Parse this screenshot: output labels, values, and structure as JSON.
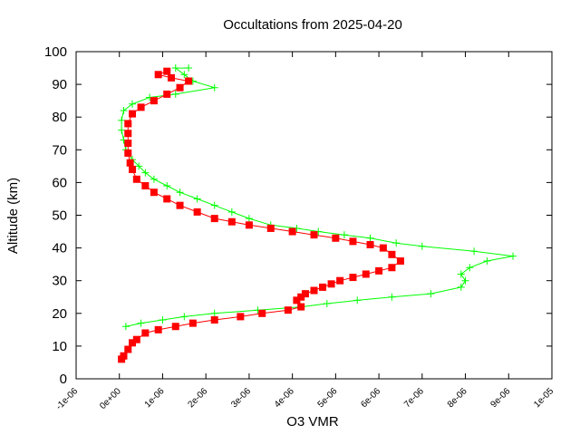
{
  "chart_data": {
    "type": "scatter",
    "title": "Occultations from 2025-04-20",
    "xlabel": "O3 VMR",
    "ylabel": "Altitude (km)",
    "xlim": [
      -1e-06,
      1e-05
    ],
    "ylim": [
      0,
      100
    ],
    "x_tick_labels": [
      "-1e-06",
      "0e+00",
      "1e-06",
      "2e-06",
      "3e-06",
      "4e-06",
      "5e-06",
      "6e-06",
      "7e-06",
      "8e-06",
      "9e-06",
      "1e-05"
    ],
    "x_tick_values": [
      -1e-06,
      0,
      1e-06,
      2e-06,
      3e-06,
      4e-06,
      5e-06,
      6e-06,
      7e-06,
      8e-06,
      9e-06,
      1e-05
    ],
    "y_tick_labels": [
      "0",
      "10",
      "20",
      "30",
      "40",
      "50",
      "60",
      "70",
      "80",
      "90",
      "100"
    ],
    "y_tick_values": [
      0,
      10,
      20,
      30,
      40,
      50,
      60,
      70,
      80,
      90,
      100
    ],
    "grid": false,
    "series": [
      {
        "marker": "plus",
        "color": "#00ff00",
        "points": [
          [
            1.5e-07,
            16
          ],
          [
            5e-07,
            17
          ],
          [
            1e-06,
            18
          ],
          [
            1.5e-06,
            19
          ],
          [
            2.2e-06,
            20
          ],
          [
            3.2e-06,
            21
          ],
          [
            4.2e-06,
            22
          ],
          [
            4.8e-06,
            23
          ],
          [
            5.5e-06,
            24
          ],
          [
            6.3e-06,
            25
          ],
          [
            7.2e-06,
            26
          ],
          [
            7.9e-06,
            28
          ],
          [
            8e-06,
            30
          ],
          [
            7.9e-06,
            32
          ],
          [
            8.1e-06,
            34
          ],
          [
            8.5e-06,
            36
          ],
          [
            9.1e-06,
            37.5
          ],
          [
            8.2e-06,
            39
          ],
          [
            7e-06,
            40.5
          ],
          [
            6.4e-06,
            41.5
          ],
          [
            5.8e-06,
            43
          ],
          [
            5.2e-06,
            44
          ],
          [
            4.6e-06,
            45
          ],
          [
            4.1e-06,
            46
          ],
          [
            3.5e-06,
            47
          ],
          [
            3e-06,
            49
          ],
          [
            2.6e-06,
            51
          ],
          [
            2.2e-06,
            53
          ],
          [
            1.8e-06,
            55
          ],
          [
            1.4e-06,
            57
          ],
          [
            1.1e-06,
            59
          ],
          [
            8e-07,
            61
          ],
          [
            6e-07,
            63
          ],
          [
            4.5e-07,
            65
          ],
          [
            3e-07,
            67
          ],
          [
            1.5e-07,
            70
          ],
          [
            1e-07,
            73
          ],
          [
            5e-08,
            76
          ],
          [
            5e-08,
            79
          ],
          [
            1e-07,
            82
          ],
          [
            3e-07,
            84
          ],
          [
            7e-07,
            86
          ],
          [
            1.3e-06,
            87
          ],
          [
            2.2e-06,
            89
          ],
          [
            1.7e-06,
            91
          ],
          [
            1.5e-06,
            93
          ],
          [
            1.3e-06,
            95
          ],
          [
            1.6e-06,
            95
          ]
        ]
      },
      {
        "marker": "square",
        "color": "#ff0000",
        "points": [
          [
            5e-08,
            6
          ],
          [
            1e-07,
            7
          ],
          [
            2e-07,
            9
          ],
          [
            3e-07,
            11
          ],
          [
            4e-07,
            12
          ],
          [
            6e-07,
            14
          ],
          [
            9e-07,
            15
          ],
          [
            1.3e-06,
            16
          ],
          [
            1.7e-06,
            17
          ],
          [
            2.2e-06,
            18
          ],
          [
            2.8e-06,
            19
          ],
          [
            3.3e-06,
            20
          ],
          [
            3.9e-06,
            21
          ],
          [
            4.2e-06,
            22
          ],
          [
            4.1e-06,
            24
          ],
          [
            4.2e-06,
            25
          ],
          [
            4.3e-06,
            26
          ],
          [
            4.5e-06,
            27
          ],
          [
            4.7e-06,
            28
          ],
          [
            4.9e-06,
            29
          ],
          [
            5.1e-06,
            30
          ],
          [
            5.4e-06,
            31
          ],
          [
            5.7e-06,
            32
          ],
          [
            6e-06,
            33
          ],
          [
            6.3e-06,
            34
          ],
          [
            6.5e-06,
            36
          ],
          [
            6.3e-06,
            38
          ],
          [
            6.1e-06,
            40
          ],
          [
            5.8e-06,
            41
          ],
          [
            5.4e-06,
            42
          ],
          [
            5e-06,
            43
          ],
          [
            4.5e-06,
            44
          ],
          [
            4e-06,
            45
          ],
          [
            3.5e-06,
            46
          ],
          [
            3e-06,
            47
          ],
          [
            2.6e-06,
            48
          ],
          [
            2.2e-06,
            49
          ],
          [
            1.8e-06,
            51
          ],
          [
            1.4e-06,
            53
          ],
          [
            1.1e-06,
            55
          ],
          [
            8e-07,
            57
          ],
          [
            6e-07,
            59
          ],
          [
            4e-07,
            61
          ],
          [
            3e-07,
            64
          ],
          [
            2.5e-07,
            66
          ],
          [
            2e-07,
            69
          ],
          [
            2e-07,
            72
          ],
          [
            2e-07,
            75
          ],
          [
            2e-07,
            78
          ],
          [
            3e-07,
            81
          ],
          [
            5e-07,
            83
          ],
          [
            8e-07,
            85
          ],
          [
            1.1e-06,
            87
          ],
          [
            1.4e-06,
            89
          ],
          [
            1.6e-06,
            91
          ],
          [
            1.2e-06,
            92
          ],
          [
            9e-07,
            93
          ],
          [
            1.1e-06,
            94
          ]
        ]
      }
    ]
  }
}
